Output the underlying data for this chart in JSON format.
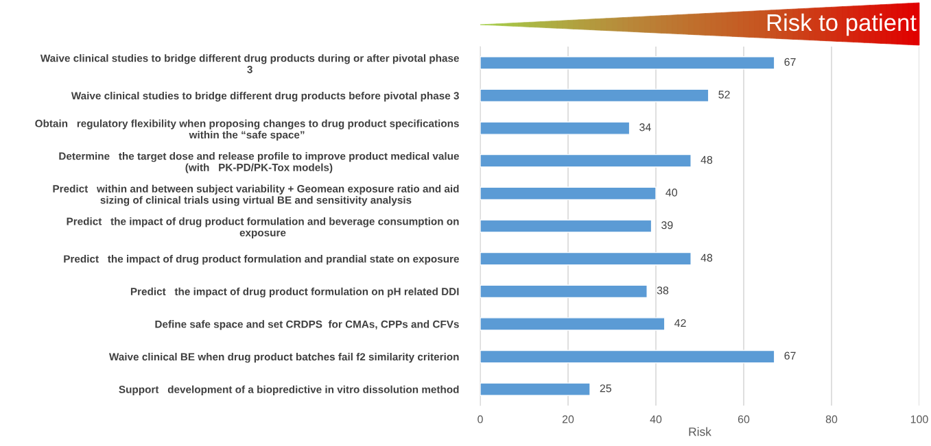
{
  "chart_data": {
    "type": "bar",
    "orientation": "horizontal",
    "xlabel": "Risk",
    "categories": [
      "Waive clinical studies to bridge different drug products during or after pivotal phase\n3",
      "Waive clinical studies to bridge different drug products before pivotal phase 3",
      "Obtain   regulatory flexibility when proposing changes to drug product specifications\nwithin the “safe space”",
      "Determine   the target dose and release profile to improve product medical value\n(with   PK-PD/PK-Tox models)",
      "Predict   within and between subject variability + Geomean exposure ratio and aid\nsizing of clinical trials using virtual BE and sensitivity analysis",
      "Predict   the impact of drug product formulation and beverage consumption on\nexposure",
      "Predict   the impact of drug product formulation and prandial state on exposure",
      "Predict   the impact of drug product formulation on pH related DDI",
      "Define safe space and set CRDPS  for CMAs, CPPs and CFVs",
      "Waive clinical BE when drug product batches fail f2 similarity criterion",
      "Support   development of a biopredictive in vitro dissolution method"
    ],
    "values": [
      67,
      52,
      34,
      48,
      40,
      39,
      48,
      38,
      42,
      67,
      25
    ],
    "color": "#5b9bd5",
    "data_labels": true,
    "xlim": [
      0,
      100
    ],
    "xticks": [
      0,
      20,
      40,
      60,
      80,
      100
    ],
    "grid": "x",
    "annotations": [
      "Risk to patient"
    ]
  }
}
